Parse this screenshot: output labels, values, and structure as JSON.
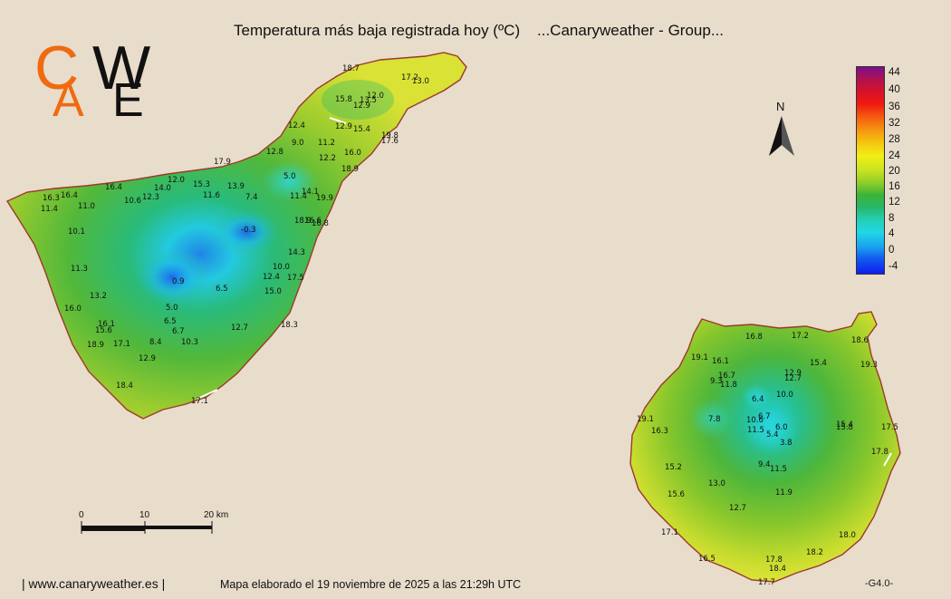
{
  "header": {
    "title": "Temperatura más baja registrada hoy (ºC)    ...Canaryweather - Group..."
  },
  "logo": {
    "letters": [
      "C",
      "A",
      "W",
      "E"
    ]
  },
  "legend": {
    "labels": [
      "44",
      "40",
      "36",
      "32",
      "28",
      "24",
      "20",
      "16",
      "12",
      "8",
      "4",
      "0",
      "-4"
    ]
  },
  "north": {
    "label": "N"
  },
  "scale_bar": {
    "labels": [
      "0",
      "10",
      "20 km"
    ]
  },
  "footer": {
    "site": "| www.canaryweather.es |",
    "map_note": "Mapa elaborado el 19 noviembre de 2025 a las 21:29h UTC",
    "version": "-G4.0-"
  },
  "colors": {
    "background": "#e8dccb",
    "logo_orange": "#f06a10",
    "logo_black": "#111111",
    "coast": "#9b3a2a"
  },
  "stations_tenerife": [
    "18.7",
    "17.2",
    "13.0",
    "12.0",
    "15.8",
    "13.5",
    "12.9",
    "12.4",
    "12.9",
    "15.4",
    "19.8",
    "17.6",
    "9.0",
    "11.2",
    "16.0",
    "12.8",
    "12.2",
    "18.9",
    "17.9",
    "5.0",
    "12.0",
    "14.0",
    "15.3",
    "13.9",
    "16.4",
    "10.6",
    "12.3",
    "11.6",
    "7.4",
    "11.4",
    "14.1",
    "19.9",
    "16.3",
    "16.4",
    "11.4",
    "11.0",
    "18.9",
    "16.6",
    "16.8",
    "-0.3",
    "10.1",
    "14.3",
    "11.3",
    "10.0",
    "12.4",
    "17.5",
    "0.9",
    "6.5",
    "15.0",
    "13.2",
    "5.0",
    "16.0",
    "16.1",
    "6.5",
    "15.6",
    "6.7",
    "12.7",
    "18.3",
    "18.9",
    "17.1",
    "8.4",
    "10.3",
    "12.9",
    "18.4",
    "17.1"
  ],
  "stations_gran_canaria": [
    "16.8",
    "17.2",
    "18.6",
    "19.1",
    "16.1",
    "15.4",
    "19.3",
    "16.7",
    "12.9",
    "9.3",
    "11.8",
    "12.7",
    "6.4",
    "10.0",
    "19.1",
    "7.8",
    "10.6",
    "6.7",
    "15.4",
    "16.3",
    "11.5",
    "6.0",
    "15.8",
    "17.5",
    "5.4",
    "3.8",
    "17.8",
    "15.2",
    "9.4",
    "11.5",
    "13.0",
    "15.6",
    "11.9",
    "12.7",
    "17.1",
    "18.0",
    "18.2",
    "16.5",
    "17.8",
    "18.4",
    "17.7"
  ]
}
